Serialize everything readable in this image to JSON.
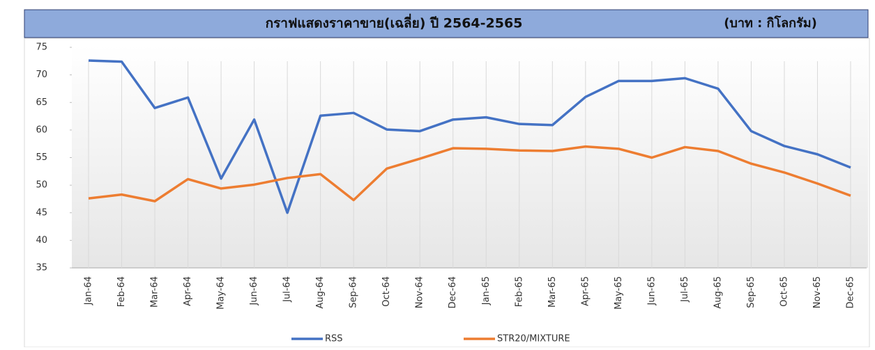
{
  "chart_data": {
    "type": "line",
    "title": "กราฟแสดงราคาขาย(เฉลี่ย) ปี 2564-2565",
    "subtitle": "(บาท : กิโลกรัม)",
    "categories": [
      "Jan-64",
      "Feb-64",
      "Mar-64",
      "Apr-64",
      "May-64",
      "Jun-64",
      "Jul-64",
      "Aug-64",
      "Sep-64",
      "Oct-64",
      "Nov-64",
      "Dec-64",
      "Jan-65",
      "Feb-65",
      "Mar-65",
      "Apr-65",
      "May-65",
      "Jun-65",
      "Jul-65",
      "Aug-65",
      "Sep-65",
      "Oct-65",
      "Nov-65",
      "Dec-65"
    ],
    "series": [
      {
        "name": "RSS",
        "color": "#4472c4",
        "values": [
          72.6,
          72.4,
          64,
          65.9,
          51.2,
          61.9,
          45,
          62.6,
          63.1,
          60.1,
          59.8,
          61.9,
          62.3,
          61.1,
          60.9,
          66,
          68.9,
          68.9,
          69.4,
          67.5,
          59.8,
          57.1,
          55.6,
          53.2
        ]
      },
      {
        "name": "STR20/MIXTURE",
        "color": "#ed7d31",
        "values": [
          47.6,
          48.3,
          47.1,
          51.1,
          49.4,
          50.1,
          51.3,
          52,
          47.3,
          53,
          54.8,
          56.7,
          56.6,
          56.3,
          56.2,
          57,
          56.6,
          55,
          56.9,
          56.2,
          53.9,
          52.3,
          50.3,
          48.1
        ]
      }
    ],
    "ylim": [
      35,
      75
    ],
    "yticks": [
      35,
      40,
      45,
      50,
      55,
      60,
      65,
      70,
      75
    ],
    "grid": true,
    "legend": "bottom"
  }
}
